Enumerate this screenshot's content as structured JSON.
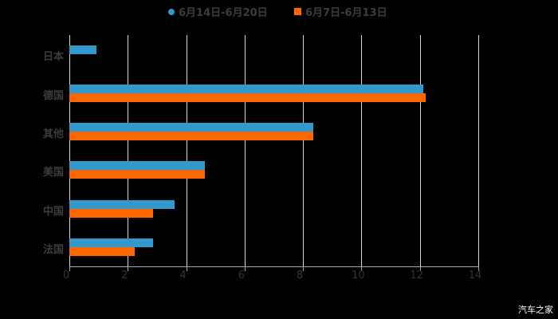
{
  "chart_data": {
    "type": "bar",
    "orientation": "horizontal",
    "title": "",
    "xlabel": "",
    "ylabel": "",
    "xlim": [
      0,
      14
    ],
    "xticks": [
      "0",
      "2",
      "4",
      "6",
      "8",
      "10",
      "12",
      "14"
    ],
    "grid": true,
    "legend_position": "top",
    "categories": [
      "日本",
      "德国",
      "其他",
      "美国",
      "中国",
      "法国"
    ],
    "series": [
      {
        "name": "6月14日-6月20日",
        "color": "#3399cc",
        "values": [
          0.93,
          12.13,
          8.36,
          4.64,
          3.6,
          2.87
        ]
      },
      {
        "name": "6月7日-6月13日",
        "color": "#ff6600",
        "values": [
          null,
          12.21,
          8.36,
          4.64,
          2.87,
          2.24
        ]
      }
    ]
  },
  "legend": {
    "series_1": "6月14日-6月20日",
    "series_2": "6月7日-6月13日"
  },
  "watermark": "汽车之家"
}
